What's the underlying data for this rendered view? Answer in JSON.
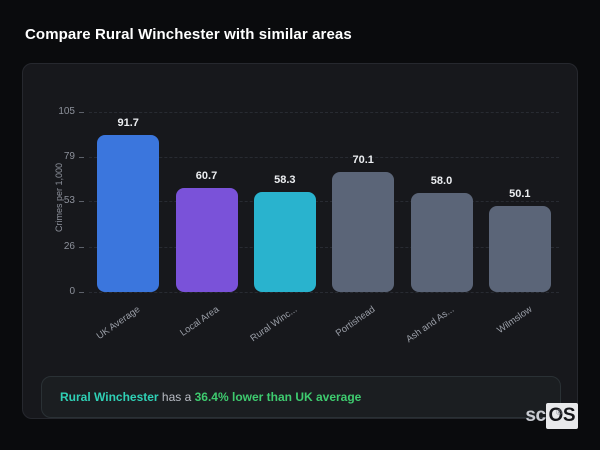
{
  "header": {
    "title": "Compare Rural Winchester with similar areas"
  },
  "chart_data": {
    "type": "bar",
    "title": "Compare Rural Winchester with similar areas",
    "xlabel": "",
    "ylabel": "Crimes per 1,000",
    "ylim": [
      0,
      105
    ],
    "yticks": [
      0,
      26,
      53,
      79,
      105
    ],
    "grid": "horizontal-dashed",
    "legend": "none",
    "categories": [
      "UK Average",
      "Local Area",
      "Rural Winc...",
      "Portishead",
      "Ash and As...",
      "Wilmslow"
    ],
    "values": [
      91.7,
      60.7,
      58.3,
      70.1,
      58.0,
      50.1
    ],
    "value_labels": [
      "91.7",
      "60.7",
      "58.3",
      "70.1",
      "58.0",
      "50.1"
    ],
    "bar_colors": [
      "#3b76dd",
      "#7a52d9",
      "#29b3ce",
      "#5b6578",
      "#5b6578",
      "#5b6578"
    ]
  },
  "note": {
    "subject": "Rural Winchester",
    "connector": " has a ",
    "highlight": "36.4% lower than UK average",
    "subject_color": "#2fd0b5",
    "highlight_color": "#3ecb6f"
  },
  "brand": {
    "prefix": "sc",
    "suffix": "OS",
    "registered": "®"
  }
}
